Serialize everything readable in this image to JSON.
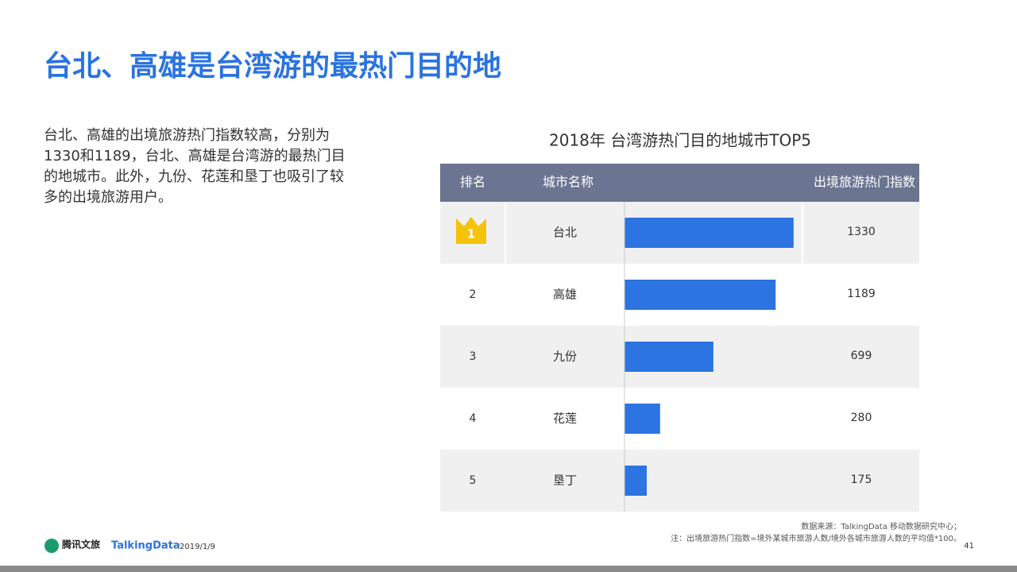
{
  "header": {
    "title": "台北、高雄是台湾游的最热门目的地"
  },
  "body": {
    "text": "台北、高雄的出境旅游热门指数较高，分别为1330和1189，台北、高雄是台湾游的最热门目的地城市。此外，九份、花莲和垦丁也吸引了较多的出境旅游用户。"
  },
  "table": {
    "title": "2018年 台湾游热门目的地城市TOP5",
    "columns": [
      "排名",
      "城市名称",
      "出境旅游热门指数"
    ],
    "rows": [
      {
        "rank": 1,
        "city": "台北",
        "value": 1330
      },
      {
        "rank": 2,
        "city": "高雄",
        "value": 1189
      },
      {
        "rank": 3,
        "city": "九份",
        "value": 699
      },
      {
        "rank": 4,
        "city": "花莲",
        "value": 280
      },
      {
        "rank": 5,
        "city": "垦丁",
        "value": 175
      }
    ]
  },
  "footer": {
    "logo1": "腾讯文旅",
    "logo2": "TalkingData",
    "date": "2019/1/9",
    "source": "数据来源：TalkingData  移动数据研究中心；",
    "note": "注：出境旅游热门指数=境外某城市旅游人数/境外各城市旅游人数的平均值*100。",
    "page": "41"
  }
}
